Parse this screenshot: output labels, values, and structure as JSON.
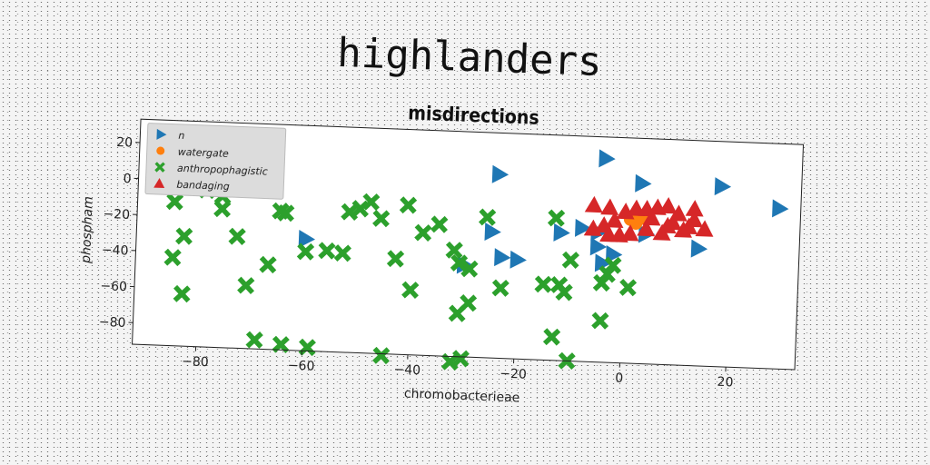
{
  "suptitle": "highlanders",
  "chart_data": {
    "type": "scatter",
    "title": "misdirections",
    "xlabel": "chromobacterieae",
    "ylabel": "phospham",
    "xlim": [
      -92,
      33
    ],
    "ylim": [
      -92,
      33
    ],
    "xticks": [
      -80,
      -60,
      -40,
      -20,
      0,
      20
    ],
    "yticks": [
      20,
      0,
      -20,
      -40,
      -60,
      -80
    ],
    "legend_position": "upper-left",
    "series": [
      {
        "name": "n",
        "marker": "triangle-right",
        "color": "#1f77b4",
        "points": [
          [
            -4,
            21
          ],
          [
            -24,
            10
          ],
          [
            3,
            8
          ],
          [
            18,
            8
          ],
          [
            29,
            -3
          ],
          [
            -25,
            -22
          ],
          [
            -12,
            -21
          ],
          [
            -8,
            -18
          ],
          [
            -5,
            -20
          ],
          [
            -5,
            -28
          ],
          [
            -2,
            -32
          ],
          [
            -4,
            -37
          ],
          [
            -23,
            -36
          ],
          [
            -20,
            -37
          ],
          [
            -30,
            -41
          ],
          [
            -60,
            -30
          ],
          [
            4,
            -20
          ],
          [
            14,
            -27
          ]
        ]
      },
      {
        "name": "watergate",
        "marker": "circle",
        "color": "#ff7f0e",
        "points": [
          [
            1,
            -12
          ],
          [
            2,
            -14
          ],
          [
            3,
            -11
          ]
        ]
      },
      {
        "name": "anthropophagistic",
        "marker": "x",
        "color": "#2ca02c",
        "points": [
          [
            -85,
            -12
          ],
          [
            -83,
            -31
          ],
          [
            -85,
            -43
          ],
          [
            -83,
            -63
          ],
          [
            -79,
            -5
          ],
          [
            -77,
            -3
          ],
          [
            -76,
            -8
          ],
          [
            -76,
            -15
          ],
          [
            -73,
            -30
          ],
          [
            -71,
            -57
          ],
          [
            -67,
            -45
          ],
          [
            -65,
            -15
          ],
          [
            -64,
            -16
          ],
          [
            -60,
            -37
          ],
          [
            -56,
            -36
          ],
          [
            -53,
            -37
          ],
          [
            -52,
            -14
          ],
          [
            -50,
            -12
          ],
          [
            -48,
            -8
          ],
          [
            -46,
            -17
          ],
          [
            -43,
            -39
          ],
          [
            -41,
            -9
          ],
          [
            -40,
            -56
          ],
          [
            -38,
            -24
          ],
          [
            -35,
            -19
          ],
          [
            -32,
            -33
          ],
          [
            -31,
            -40
          ],
          [
            -29,
            -43
          ],
          [
            -31,
            -68
          ],
          [
            -29,
            -62
          ],
          [
            -26,
            -14
          ],
          [
            -23,
            -53
          ],
          [
            -13,
            -13
          ],
          [
            -15,
            -50
          ],
          [
            -12,
            -50
          ],
          [
            -11,
            -54
          ],
          [
            -10,
            -36
          ],
          [
            -13,
            -79
          ],
          [
            -10,
            -92
          ],
          [
            -4,
            -48
          ],
          [
            -3,
            -43
          ],
          [
            -2,
            -38
          ],
          [
            1,
            -50
          ],
          [
            -4,
            -69
          ],
          [
            -69,
            -87
          ],
          [
            -64,
            -89
          ],
          [
            -59,
            -90
          ],
          [
            -45,
            -93
          ],
          [
            -32,
            -95
          ],
          [
            -30,
            -93
          ]
        ]
      },
      {
        "name": "bandaging",
        "marker": "triangle-up",
        "color": "#d62728",
        "points": [
          [
            -6,
            -5
          ],
          [
            -3,
            -6
          ],
          [
            -2,
            -13
          ],
          [
            0,
            -8
          ],
          [
            2,
            -6
          ],
          [
            4,
            -6
          ],
          [
            6,
            -5
          ],
          [
            8,
            -4
          ],
          [
            10,
            -8
          ],
          [
            13,
            -5
          ],
          [
            -4,
            -16
          ],
          [
            -1,
            -21
          ],
          [
            1,
            -20
          ],
          [
            4,
            -17
          ],
          [
            7,
            -19
          ],
          [
            9,
            -13
          ],
          [
            11,
            -17
          ],
          [
            13,
            -11
          ],
          [
            15,
            -16
          ],
          [
            -6,
            -18
          ],
          [
            -3,
            -21
          ],
          [
            5,
            -11
          ],
          [
            8,
            -15
          ],
          [
            12,
            -15
          ]
        ]
      }
    ]
  }
}
